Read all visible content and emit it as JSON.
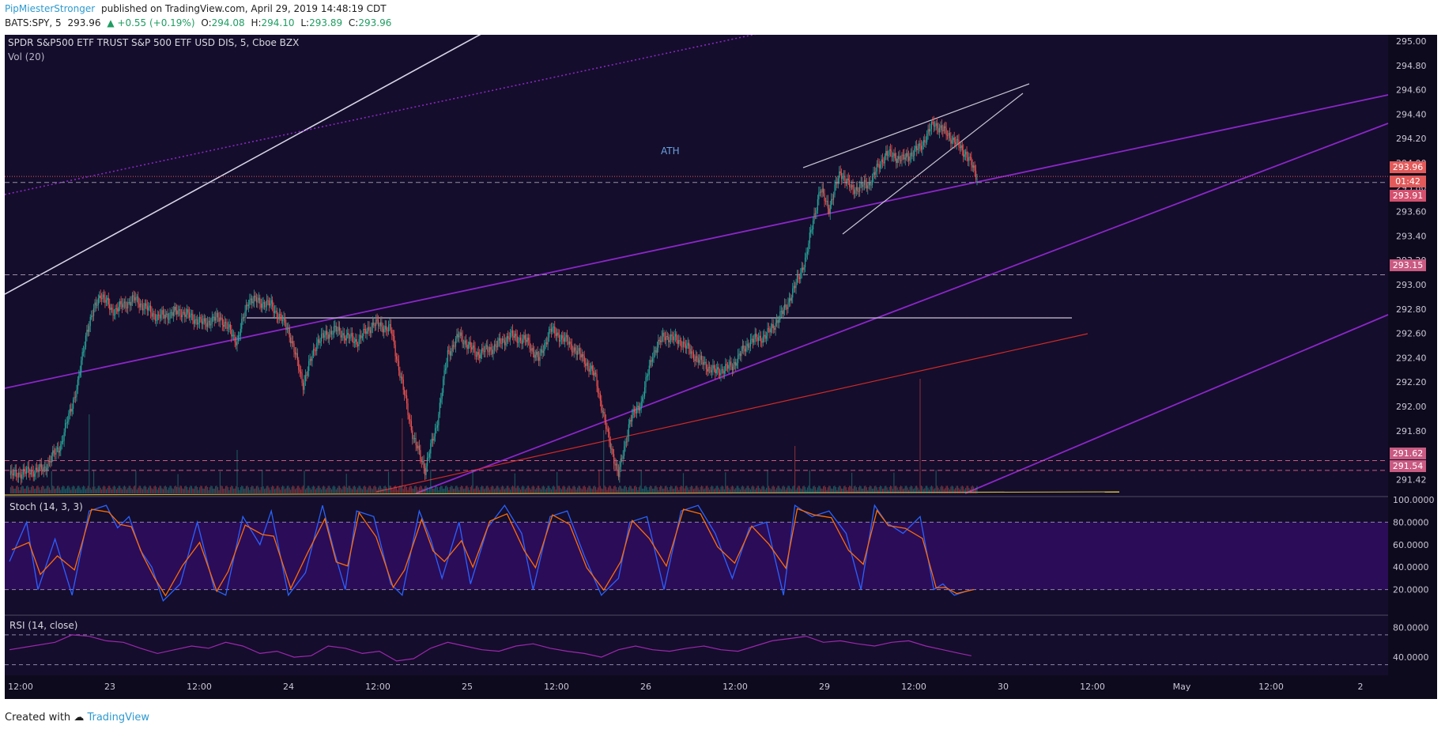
{
  "header": {
    "author": "PipMiesterStronger",
    "published_text": "published on TradingView.com, April 29, 2019 14:48:19 CDT",
    "symbol": "BATS:SPY, 5",
    "last": "293.96",
    "change": "▲ +0.55 (+0.19%)",
    "open_label": "O:",
    "open": "294.08",
    "high_label": "H:",
    "high": "294.10",
    "low_label": "L:",
    "low": "293.89",
    "close_label": "C:",
    "close": "293.96"
  },
  "pane": {
    "title": "SPDR S&P500 ETF TRUST S&P 500 ETF USD DIS, 5, Cboe BZX",
    "vol_label": "Vol (20)",
    "annotation": "ATH",
    "stoch_label": "Stoch (14, 3, 3)",
    "rsi_label": "RSI (14, close)",
    "price_badges": [
      {
        "text": "293.96",
        "color": "#e35a5a"
      },
      {
        "text": "01:42",
        "color": "#e35a5a"
      },
      {
        "text": "293.91",
        "color": "#d4506e"
      },
      {
        "text": "293.15",
        "color": "#c95a82"
      },
      {
        "text": "291.62",
        "color": "#c95a82"
      },
      {
        "text": "291.54",
        "color": "#c95a82"
      }
    ]
  },
  "footer": {
    "created_with": "Created with",
    "brand": "TradingView"
  },
  "colors": {
    "background": "#140d2b",
    "up": "#26a69a",
    "down": "#ef5350",
    "trend": "#8b26c9",
    "stoch_band": "#2b0c59",
    "stoch_k": "#2962ff",
    "stoch_d": "#ff6d00",
    "rsi": "#9c27b0"
  },
  "chart_data": {
    "type": "candlestick",
    "y_axis_ticks": [
      "295.00",
      "294.80",
      "294.60",
      "294.40",
      "294.20",
      "294.00",
      "293.80",
      "293.60",
      "293.40",
      "293.20",
      "293.00",
      "292.80",
      "292.60",
      "292.40",
      "292.20",
      "292.00",
      "291.80",
      "291.60",
      "291.42"
    ],
    "stoch_ticks": [
      "100.0000",
      "80.0000",
      "60.0000",
      "40.0000",
      "20.0000"
    ],
    "rsi_ticks": [
      "80.0000",
      "40.0000"
    ],
    "x_ticks": [
      "12:00",
      "23",
      "12:00",
      "24",
      "12:00",
      "25",
      "12:00",
      "26",
      "12:00",
      "29",
      "12:00",
      "30",
      "12:00",
      "May",
      "12:00",
      "2"
    ],
    "ylim": [
      291.35,
      295.1
    ],
    "horizontal_levels": [
      293.96,
      293.91,
      293.15,
      291.62,
      291.54
    ],
    "stoch_levels": [
      80,
      20
    ],
    "rsi_levels": [
      70,
      30
    ],
    "price_path": [
      [
        0,
        291.5
      ],
      [
        30,
        291.55
      ],
      [
        45,
        291.75
      ],
      [
        60,
        292.25
      ],
      [
        68,
        292.7
      ],
      [
        80,
        293.0
      ],
      [
        90,
        292.85
      ],
      [
        110,
        292.95
      ],
      [
        130,
        292.8
      ],
      [
        150,
        292.85
      ],
      [
        170,
        292.75
      ],
      [
        185,
        292.8
      ],
      [
        200,
        292.6
      ],
      [
        210,
        292.95
      ],
      [
        230,
        292.9
      ],
      [
        245,
        292.7
      ],
      [
        258,
        292.25
      ],
      [
        270,
        292.6
      ],
      [
        285,
        292.7
      ],
      [
        305,
        292.6
      ],
      [
        320,
        292.75
      ],
      [
        335,
        292.7
      ],
      [
        345,
        292.25
      ],
      [
        355,
        291.8
      ],
      [
        365,
        291.55
      ],
      [
        375,
        291.9
      ],
      [
        385,
        292.5
      ],
      [
        395,
        292.65
      ],
      [
        410,
        292.5
      ],
      [
        425,
        292.55
      ],
      [
        440,
        292.65
      ],
      [
        455,
        292.6
      ],
      [
        465,
        292.45
      ],
      [
        475,
        292.7
      ],
      [
        490,
        292.6
      ],
      [
        505,
        292.45
      ],
      [
        515,
        292.3
      ],
      [
        525,
        291.85
      ],
      [
        535,
        291.5
      ],
      [
        545,
        291.95
      ],
      [
        555,
        292.1
      ],
      [
        565,
        292.5
      ],
      [
        575,
        292.65
      ],
      [
        590,
        292.6
      ],
      [
        605,
        292.45
      ],
      [
        620,
        292.35
      ],
      [
        635,
        292.4
      ],
      [
        650,
        292.6
      ],
      [
        665,
        292.65
      ],
      [
        680,
        292.85
      ],
      [
        690,
        293.05
      ],
      [
        700,
        293.3
      ],
      [
        706,
        293.6
      ],
      [
        712,
        293.85
      ],
      [
        720,
        293.7
      ],
      [
        730,
        294.0
      ],
      [
        740,
        293.85
      ],
      [
        755,
        293.9
      ],
      [
        770,
        294.15
      ],
      [
        785,
        294.1
      ],
      [
        800,
        294.2
      ],
      [
        812,
        294.4
      ],
      [
        825,
        294.3
      ],
      [
        840,
        294.15
      ],
      [
        850,
        293.96
      ]
    ],
    "stoch_path": [
      [
        0,
        45
      ],
      [
        15,
        80
      ],
      [
        25,
        20
      ],
      [
        40,
        65
      ],
      [
        55,
        15
      ],
      [
        70,
        90
      ],
      [
        85,
        95
      ],
      [
        95,
        75
      ],
      [
        105,
        85
      ],
      [
        115,
        55
      ],
      [
        125,
        40
      ],
      [
        135,
        10
      ],
      [
        150,
        25
      ],
      [
        165,
        80
      ],
      [
        180,
        20
      ],
      [
        190,
        15
      ],
      [
        205,
        85
      ],
      [
        220,
        60
      ],
      [
        230,
        90
      ],
      [
        245,
        15
      ],
      [
        260,
        35
      ],
      [
        275,
        95
      ],
      [
        285,
        55
      ],
      [
        295,
        20
      ],
      [
        305,
        90
      ],
      [
        320,
        85
      ],
      [
        335,
        25
      ],
      [
        345,
        15
      ],
      [
        360,
        90
      ],
      [
        370,
        65
      ],
      [
        380,
        30
      ],
      [
        395,
        80
      ],
      [
        405,
        25
      ],
      [
        420,
        75
      ],
      [
        435,
        95
      ],
      [
        450,
        70
      ],
      [
        460,
        20
      ],
      [
        475,
        85
      ],
      [
        490,
        90
      ],
      [
        505,
        50
      ],
      [
        520,
        15
      ],
      [
        535,
        30
      ],
      [
        545,
        80
      ],
      [
        560,
        85
      ],
      [
        575,
        20
      ],
      [
        590,
        90
      ],
      [
        605,
        95
      ],
      [
        620,
        70
      ],
      [
        635,
        30
      ],
      [
        650,
        75
      ],
      [
        665,
        80
      ],
      [
        680,
        15
      ],
      [
        690,
        95
      ],
      [
        705,
        85
      ],
      [
        720,
        90
      ],
      [
        735,
        70
      ],
      [
        748,
        20
      ],
      [
        760,
        95
      ],
      [
        770,
        80
      ],
      [
        785,
        70
      ],
      [
        800,
        85
      ],
      [
        812,
        20
      ],
      [
        820,
        25
      ],
      [
        830,
        15
      ],
      [
        845,
        20
      ]
    ],
    "rsi_path": [
      [
        0,
        50
      ],
      [
        20,
        55
      ],
      [
        40,
        60
      ],
      [
        55,
        70
      ],
      [
        70,
        68
      ],
      [
        85,
        62
      ],
      [
        100,
        60
      ],
      [
        115,
        52
      ],
      [
        130,
        45
      ],
      [
        145,
        50
      ],
      [
        160,
        55
      ],
      [
        175,
        52
      ],
      [
        190,
        60
      ],
      [
        205,
        55
      ],
      [
        220,
        45
      ],
      [
        235,
        48
      ],
      [
        250,
        40
      ],
      [
        265,
        42
      ],
      [
        280,
        55
      ],
      [
        295,
        52
      ],
      [
        310,
        45
      ],
      [
        325,
        48
      ],
      [
        340,
        35
      ],
      [
        355,
        38
      ],
      [
        370,
        52
      ],
      [
        385,
        60
      ],
      [
        400,
        55
      ],
      [
        415,
        50
      ],
      [
        430,
        48
      ],
      [
        445,
        55
      ],
      [
        460,
        58
      ],
      [
        475,
        52
      ],
      [
        490,
        48
      ],
      [
        505,
        45
      ],
      [
        520,
        40
      ],
      [
        535,
        50
      ],
      [
        550,
        55
      ],
      [
        565,
        50
      ],
      [
        580,
        48
      ],
      [
        595,
        52
      ],
      [
        610,
        55
      ],
      [
        625,
        50
      ],
      [
        640,
        48
      ],
      [
        655,
        55
      ],
      [
        670,
        62
      ],
      [
        685,
        65
      ],
      [
        700,
        68
      ],
      [
        715,
        60
      ],
      [
        730,
        62
      ],
      [
        745,
        58
      ],
      [
        760,
        55
      ],
      [
        775,
        60
      ],
      [
        790,
        62
      ],
      [
        805,
        55
      ],
      [
        820,
        50
      ],
      [
        835,
        45
      ],
      [
        845,
        42
      ]
    ]
  }
}
